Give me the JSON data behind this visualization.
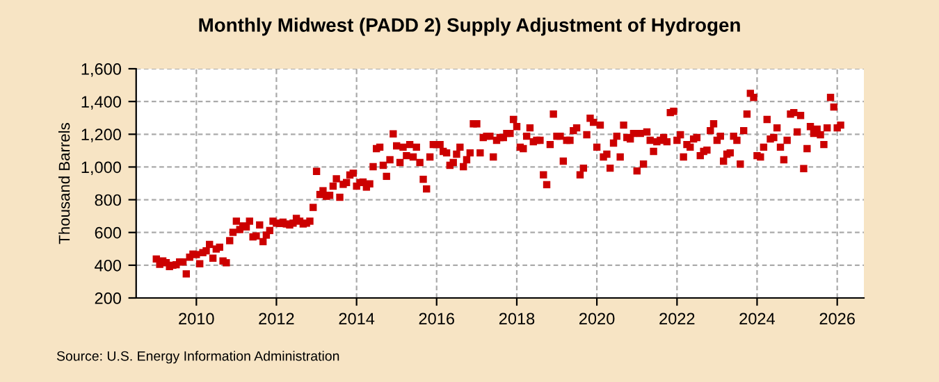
{
  "chart_data": {
    "type": "scatter",
    "title": "Monthly Midwest (PADD 2) Supply Adjustment of Hydrogen",
    "ylabel": "Thousand Barrels",
    "annotations": [
      "Source: U.S. Energy Information Administration"
    ],
    "x": [
      "2009-01",
      "2009-02",
      "2009-03",
      "2009-04",
      "2009-05",
      "2009-06",
      "2009-07",
      "2009-08",
      "2009-09",
      "2009-10",
      "2009-11",
      "2009-12",
      "2010-01",
      "2010-02",
      "2010-03",
      "2010-04",
      "2010-05",
      "2010-06",
      "2010-07",
      "2010-08",
      "2010-09",
      "2010-10",
      "2010-11",
      "2010-12",
      "2011-01",
      "2011-02",
      "2011-03",
      "2011-04",
      "2011-05",
      "2011-06",
      "2011-07",
      "2011-08",
      "2011-09",
      "2011-10",
      "2011-11",
      "2011-12",
      "2012-01",
      "2012-02",
      "2012-03",
      "2012-04",
      "2012-05",
      "2012-06",
      "2012-07",
      "2012-08",
      "2012-09",
      "2012-10",
      "2012-11",
      "2012-12",
      "2013-01",
      "2013-02",
      "2013-03",
      "2013-04",
      "2013-05",
      "2013-06",
      "2013-07",
      "2013-08",
      "2013-09",
      "2013-10",
      "2013-11",
      "2013-12",
      "2014-01",
      "2014-02",
      "2014-03",
      "2014-04",
      "2014-05",
      "2014-06",
      "2014-07",
      "2014-08",
      "2014-09",
      "2014-10",
      "2014-11",
      "2014-12",
      "2015-01",
      "2015-02",
      "2015-03",
      "2015-04",
      "2015-05",
      "2015-06",
      "2015-07",
      "2015-08",
      "2015-09",
      "2015-10",
      "2015-11",
      "2015-12",
      "2016-01",
      "2016-02",
      "2016-03",
      "2016-04",
      "2016-05",
      "2016-06",
      "2016-07",
      "2016-08",
      "2016-09",
      "2016-10",
      "2016-11",
      "2016-12",
      "2017-01",
      "2017-02",
      "2017-03",
      "2017-04",
      "2017-05",
      "2017-06",
      "2017-07",
      "2017-08",
      "2017-09",
      "2017-10",
      "2017-11",
      "2017-12",
      "2018-01",
      "2018-02",
      "2018-03",
      "2018-04",
      "2018-05",
      "2018-06",
      "2018-07",
      "2018-08",
      "2018-09",
      "2018-10",
      "2018-11",
      "2018-12",
      "2019-01",
      "2019-02",
      "2019-03",
      "2019-04",
      "2019-05",
      "2019-06",
      "2019-07",
      "2019-08",
      "2019-09",
      "2019-10",
      "2019-11",
      "2019-12",
      "2020-01",
      "2020-02",
      "2020-03",
      "2020-04",
      "2020-05",
      "2020-06",
      "2020-07",
      "2020-08",
      "2020-09",
      "2020-10",
      "2020-11",
      "2020-12",
      "2021-01",
      "2021-02",
      "2021-03",
      "2021-04",
      "2021-05",
      "2021-06",
      "2021-07",
      "2021-08",
      "2021-09",
      "2021-10",
      "2021-11",
      "2021-12",
      "2022-01",
      "2022-02",
      "2022-03",
      "2022-04",
      "2022-05",
      "2022-06",
      "2022-07",
      "2022-08",
      "2022-09",
      "2022-10",
      "2022-11",
      "2022-12",
      "2023-01",
      "2023-02",
      "2023-03",
      "2023-04",
      "2023-05",
      "2023-06",
      "2023-07",
      "2023-08",
      "2023-09",
      "2023-10",
      "2023-11",
      "2023-12",
      "2024-01",
      "2024-02",
      "2024-03",
      "2024-04",
      "2024-05",
      "2024-06",
      "2024-07",
      "2024-08",
      "2024-09",
      "2024-10",
      "2024-11",
      "2024-12",
      "2025-01",
      "2025-02",
      "2025-03",
      "2025-04",
      "2025-05",
      "2025-06",
      "2025-07",
      "2025-08",
      "2025-09",
      "2025-10",
      "2025-11",
      "2025-12",
      "2026-01",
      "2026-02"
    ],
    "series": [
      {
        "color": "#cc0000",
        "values": [
          438,
          406,
          426,
          415,
          392,
          400,
          403,
          420,
          420,
          347,
          449,
          468,
          465,
          409,
          477,
          488,
          527,
          443,
          499,
          510,
          426,
          415,
          550,
          601,
          669,
          618,
          640,
          634,
          669,
          573,
          579,
          646,
          544,
          584,
          612,
          669,
          657,
          655,
          663,
          652,
          646,
          657,
          686,
          669,
          652,
          657,
          669,
          753,
          973,
          832,
          855,
          821,
          827,
          883,
          928,
          815,
          894,
          905,
          951,
          962,
          883,
          905,
          908,
          877,
          897,
          1002,
          1112,
          1121,
          1010,
          943,
          1044,
          1202,
          1129,
          1027,
          1121,
          1069,
          1137,
          1061,
          1121,
          1027,
          925,
          866,
          1061,
          1137,
          1137,
          1137,
          1095,
          1086,
          1010,
          1027,
          1078,
          1121,
          1002,
          1044,
          1086,
          1264,
          1264,
          1086,
          1180,
          1188,
          1188,
          1061,
          1163,
          1180,
          1180,
          1205,
          1205,
          1290,
          1247,
          1121,
          1112,
          1188,
          1239,
          1154,
          1163,
          1163,
          952,
          892,
          1137,
          1323,
          1188,
          1188,
          1036,
          1163,
          1163,
          1222,
          1239,
          952,
          993,
          1197,
          1298,
          1273,
          1121,
          1256,
          1061,
          1078,
          993,
          1146,
          1188,
          1061,
          1256,
          1180,
          1171,
          1205,
          976,
          1205,
          1018,
          1214,
          1163,
          1095,
          1154,
          1163,
          1180,
          1154,
          1332,
          1340,
          1163,
          1197,
          1061,
          1137,
          1121,
          1171,
          1180,
          1069,
          1095,
          1103,
          1222,
          1264,
          1163,
          1188,
          1036,
          1078,
          1086,
          1188,
          1163,
          1018,
          1222,
          1323,
          1450,
          1425,
          1069,
          1061,
          1121,
          1290,
          1171,
          1180,
          1239,
          1121,
          1044,
          1163,
          1323,
          1332,
          1214,
          1315,
          990,
          1112,
          1247,
          1205,
          1231,
          1197,
          1137,
          1239,
          1425,
          1366,
          1239,
          1256
        ]
      }
    ],
    "xlim": [
      "2008-07",
      "2026-09"
    ],
    "xticks": [
      {
        "value": "2010",
        "label": "2010"
      },
      {
        "value": "2012",
        "label": "2012"
      },
      {
        "value": "2014",
        "label": "2014"
      },
      {
        "value": "2016",
        "label": "2016"
      },
      {
        "value": "2018",
        "label": "2018"
      },
      {
        "value": "2020",
        "label": "2020"
      },
      {
        "value": "2022",
        "label": "2022"
      },
      {
        "value": "2024",
        "label": "2024"
      },
      {
        "value": "2026",
        "label": "2026"
      }
    ],
    "ylim": [
      200,
      1600
    ],
    "yticks": [
      {
        "value": 200,
        "label": "200"
      },
      {
        "value": 400,
        "label": "400"
      },
      {
        "value": 600,
        "label": "600"
      },
      {
        "value": 800,
        "label": "800"
      },
      {
        "value": 1000,
        "label": "1,000"
      },
      {
        "value": 1200,
        "label": "1,200"
      },
      {
        "value": 1400,
        "label": "1,400"
      },
      {
        "value": 1600,
        "label": "1,600"
      }
    ],
    "grid": true,
    "marker": "square",
    "legend": false
  }
}
